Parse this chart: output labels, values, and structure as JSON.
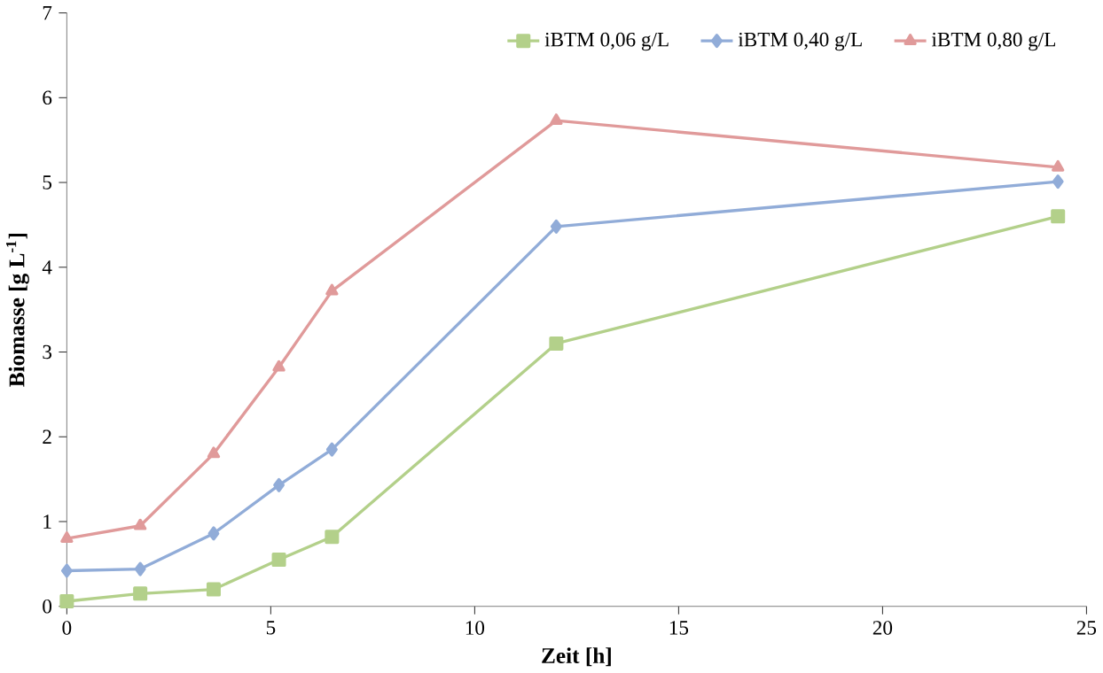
{
  "chart_data": {
    "type": "line",
    "xlabel": "Zeit [h]",
    "ylabel": "Biomasse [g L$^{-1}$]",
    "x": [
      0,
      1.8,
      3.6,
      5.2,
      6.5,
      12,
      24.3
    ],
    "series": [
      {
        "name": "iBTM 0,06 g/L",
        "color": "#b3d08a",
        "marker": "square",
        "values": [
          0.06,
          0.15,
          0.2,
          0.55,
          0.82,
          3.1,
          4.6
        ]
      },
      {
        "name": "iBTM 0,40 g/L",
        "color": "#91acd8",
        "marker": "diamond",
        "values": [
          0.42,
          0.44,
          0.86,
          1.43,
          1.85,
          4.48,
          5.01
        ]
      },
      {
        "name": "iBTM 0,80 g/L",
        "color": "#e09a9a",
        "marker": "triangle",
        "values": [
          0.8,
          0.95,
          1.8,
          2.82,
          3.72,
          5.73,
          5.18
        ]
      }
    ],
    "xlim": [
      0,
      25
    ],
    "xticks": [
      0,
      5,
      10,
      15,
      20,
      25
    ],
    "ylim": [
      0,
      7
    ],
    "yticks": [
      0,
      1,
      2,
      3,
      4,
      5,
      6,
      7
    ],
    "grid": false,
    "legend": "top",
    "line_style": "solid"
  }
}
